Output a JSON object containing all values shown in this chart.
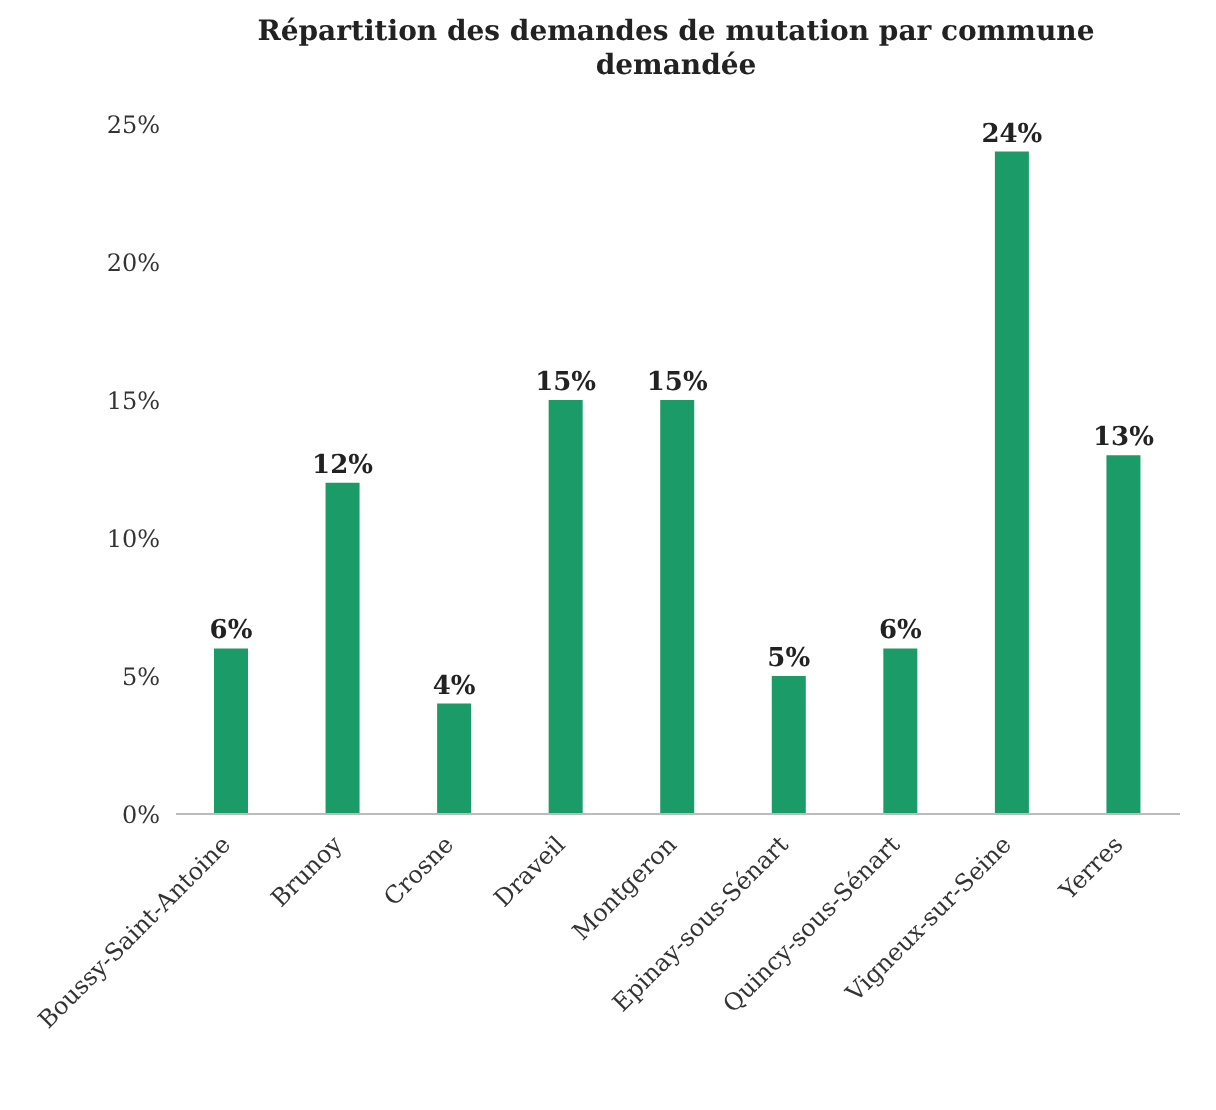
{
  "chart_data": {
    "type": "bar",
    "title": "Répartition des demandes de mutation par commune demandée",
    "categories": [
      "Boussy-Saint-Antoine",
      "Brunoy",
      "Crosne",
      "Draveil",
      "Montgeron",
      "Epinay-sous-Sénart",
      "Quincy-sous-Sénart",
      "Vigneux-sur-Seine",
      "Yerres"
    ],
    "values": [
      6,
      12,
      4,
      15,
      15,
      5,
      6,
      24,
      13
    ],
    "value_labels": [
      "6%",
      "12%",
      "4%",
      "15%",
      "15%",
      "5%",
      "6%",
      "24%",
      "13%"
    ],
    "color": "#1a9b68",
    "ylim": [
      0,
      25
    ],
    "yticks": [
      {
        "value": 0,
        "label": "0%"
      },
      {
        "value": 5,
        "label": "5%"
      },
      {
        "value": 10,
        "label": "10%"
      },
      {
        "value": 15,
        "label": "15%"
      },
      {
        "value": 20,
        "label": "20%"
      },
      {
        "value": 25,
        "label": "25%"
      }
    ],
    "legend": false
  }
}
